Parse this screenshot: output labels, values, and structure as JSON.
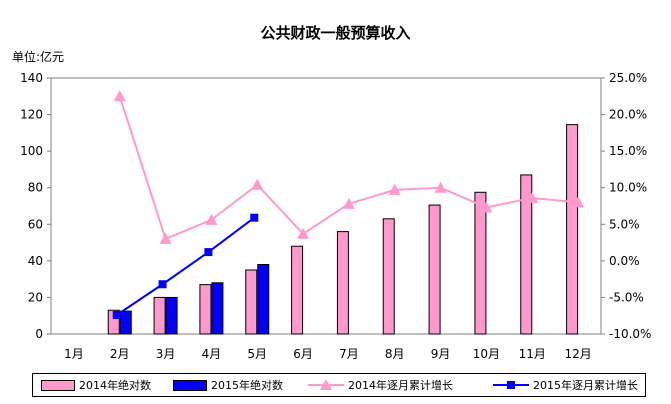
{
  "chart_data": {
    "type": "bar+line",
    "title": "公共财政一般预算收入",
    "ylabel": "单位:亿元",
    "categories": [
      "1月",
      "2月",
      "3月",
      "4月",
      "5月",
      "6月",
      "7月",
      "8月",
      "9月",
      "10月",
      "11月",
      "12月"
    ],
    "ylim": [
      0,
      140
    ],
    "yticks": [
      "0",
      "20",
      "40",
      "60",
      "80",
      "100",
      "120",
      "140"
    ],
    "y2lim": [
      -10,
      25
    ],
    "y2ticks": [
      "-10.0%",
      "-5.0%",
      "0.0%",
      "5.0%",
      "10.0%",
      "15.0%",
      "20.0%",
      "25.0%"
    ],
    "series": [
      {
        "name": "2014年绝对数",
        "type": "bar",
        "color": "#ff99cc",
        "values": [
          null,
          13,
          20,
          27,
          35,
          48,
          56,
          63,
          70.5,
          77.5,
          87,
          114.5
        ]
      },
      {
        "name": "2015年绝对数",
        "type": "bar",
        "color": "#0000ff",
        "values": [
          null,
          12.5,
          20,
          28,
          38,
          null,
          null,
          null,
          null,
          null,
          null,
          null
        ]
      },
      {
        "name": "2014年逐月累计增长",
        "type": "line",
        "axis": "right",
        "marker": "triangle",
        "color": "#ff99cc",
        "values": [
          null,
          22.5,
          3.0,
          5.6,
          10.4,
          3.7,
          7.8,
          9.7,
          10.0,
          7.3,
          8.6,
          8.0
        ]
      },
      {
        "name": "2015年逐月累计增长",
        "type": "line",
        "axis": "right",
        "marker": "square",
        "color": "#0000ff",
        "values": [
          null,
          -7.4,
          -3.2,
          1.2,
          5.9,
          null,
          null,
          null,
          null,
          null,
          null,
          null
        ]
      }
    ],
    "grid": false,
    "legend": "bottom"
  }
}
